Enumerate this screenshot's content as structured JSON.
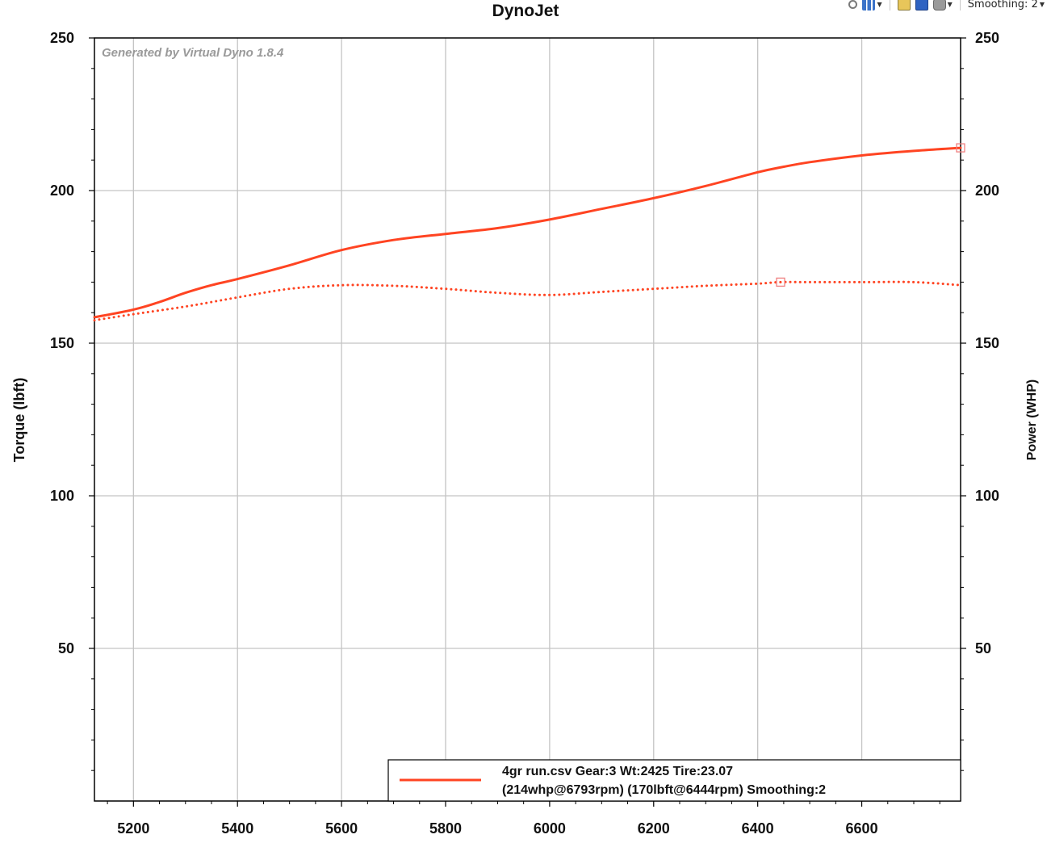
{
  "toolbar": {
    "icons": [
      "zoom-icon",
      "chart-type-icon",
      "copy-icon",
      "save-icon",
      "print-icon"
    ],
    "smoothing_label": "Smoothing: 2"
  },
  "chart_data": {
    "type": "line",
    "title": "DynoJet",
    "watermark": "Generated by Virtual Dyno 1.8.4",
    "xlabel": "",
    "ylabel_left": "Torque (lbft)",
    "ylabel_right": "Power (WHP)",
    "xlim": [
      5125,
      6790
    ],
    "ylim": [
      0,
      250
    ],
    "x_ticks": [
      5200,
      5400,
      5600,
      5800,
      6000,
      6200,
      6400,
      6600
    ],
    "y_ticks": [
      50,
      100,
      150,
      200,
      250
    ],
    "grid": true,
    "series": [
      {
        "role": "power",
        "color": "#ff4422",
        "style": "solid",
        "x": [
          5125,
          5200,
          5250,
          5300,
          5350,
          5400,
          5500,
          5600,
          5700,
          5800,
          5900,
          6000,
          6100,
          6200,
          6300,
          6400,
          6450,
          6500,
          6600,
          6700,
          6790
        ],
        "y": [
          158.5,
          161,
          163.5,
          166.5,
          169,
          171,
          175.5,
          180.5,
          183.8,
          185.8,
          187.7,
          190.5,
          194,
          197.5,
          201.5,
          206,
          207.8,
          209.3,
          211.5,
          213,
          214
        ],
        "marker": {
          "x": 6790,
          "y": 214
        }
      },
      {
        "role": "torque",
        "color": "#ff4422",
        "style": "dotted",
        "x": [
          5125,
          5200,
          5300,
          5400,
          5500,
          5600,
          5700,
          5800,
          5900,
          6000,
          6100,
          6200,
          6300,
          6400,
          6444,
          6500,
          6600,
          6700,
          6790
        ],
        "y": [
          157.5,
          159.5,
          162,
          165,
          167.8,
          169,
          168.8,
          167.8,
          166.5,
          165.8,
          166.8,
          167.8,
          168.8,
          169.5,
          170,
          170,
          170,
          170,
          169
        ],
        "marker": {
          "x": 6444,
          "y": 170
        }
      }
    ],
    "legend": {
      "placement": "bottom-right",
      "line1": "4gr run.csv Gear:3 Wt:2425 Tire:23.07",
      "line2": "(214whp@6793rpm) (170lbft@6444rpm) Smoothing:2"
    }
  }
}
